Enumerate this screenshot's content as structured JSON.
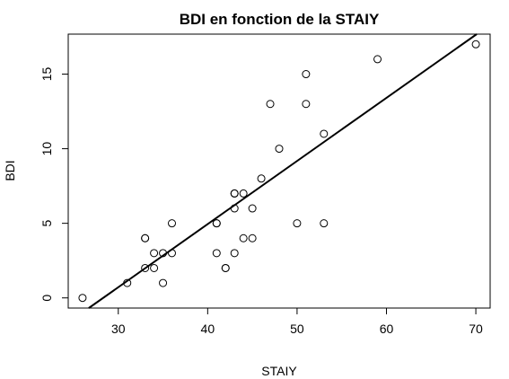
{
  "chart_data": {
    "type": "scatter",
    "title": "BDI en fonction de la STAIY",
    "xlabel": "STAIY",
    "ylabel": "BDI",
    "xlim": [
      24.4,
      71.6
    ],
    "ylim": [
      -0.68,
      17.68
    ],
    "x_ticks": [
      30,
      40,
      50,
      60,
      70
    ],
    "y_ticks": [
      0,
      5,
      10,
      15
    ],
    "x_tick_labels": [
      "30",
      "40",
      "50",
      "60",
      "70"
    ],
    "y_tick_labels": [
      "0",
      "5",
      "10",
      "15"
    ],
    "grid": false,
    "legend": "none",
    "points": [
      {
        "x": 26,
        "y": 0
      },
      {
        "x": 31,
        "y": 1
      },
      {
        "x": 33,
        "y": 2
      },
      {
        "x": 33,
        "y": 4
      },
      {
        "x": 33,
        "y": 4
      },
      {
        "x": 34,
        "y": 2
      },
      {
        "x": 34,
        "y": 3
      },
      {
        "x": 35,
        "y": 1
      },
      {
        "x": 35,
        "y": 3
      },
      {
        "x": 36,
        "y": 3
      },
      {
        "x": 36,
        "y": 5
      },
      {
        "x": 41,
        "y": 3
      },
      {
        "x": 41,
        "y": 5
      },
      {
        "x": 41,
        "y": 5
      },
      {
        "x": 42,
        "y": 2
      },
      {
        "x": 42,
        "y": 2
      },
      {
        "x": 43,
        "y": 3
      },
      {
        "x": 43,
        "y": 6
      },
      {
        "x": 43,
        "y": 7
      },
      {
        "x": 43,
        "y": 7
      },
      {
        "x": 44,
        "y": 4
      },
      {
        "x": 44,
        "y": 7
      },
      {
        "x": 45,
        "y": 4
      },
      {
        "x": 45,
        "y": 6
      },
      {
        "x": 46,
        "y": 8
      },
      {
        "x": 47,
        "y": 13
      },
      {
        "x": 48,
        "y": 10
      },
      {
        "x": 50,
        "y": 5
      },
      {
        "x": 51,
        "y": 13
      },
      {
        "x": 51,
        "y": 15
      },
      {
        "x": 53,
        "y": 5
      },
      {
        "x": 53,
        "y": 11
      },
      {
        "x": 59,
        "y": 16
      },
      {
        "x": 70,
        "y": 17
      }
    ],
    "regression_line": {
      "x": [
        26.7,
        70.1
      ],
      "y": [
        -0.68,
        17.68
      ]
    },
    "colors": {
      "points": "#000000",
      "line": "#000000",
      "background": "#ffffff"
    }
  }
}
